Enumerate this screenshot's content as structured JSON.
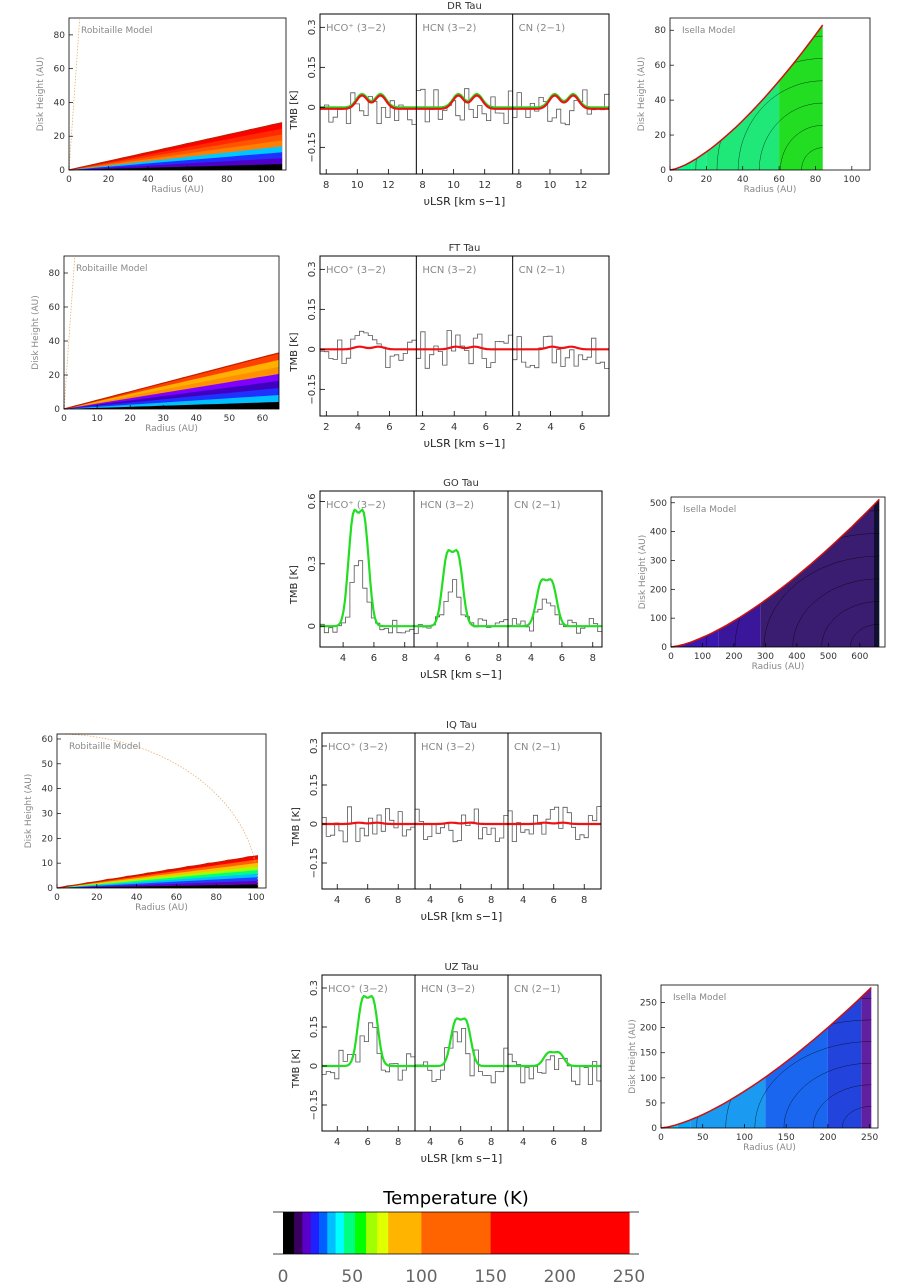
{
  "chart_data": {
    "type": "line",
    "colors": {
      "axis": "#000000",
      "label_text": "#888888",
      "spectrum": "#555555",
      "model_green": "#22dd22",
      "model_red": "#ee1111",
      "trace_orange": "#e8b070"
    },
    "spectra_common": {
      "xlabel": "υLSR [km s−1]",
      "ylabel": "TMB [K]"
    },
    "spectra_panels": [
      {
        "title": "DR Tau",
        "lines": [
          "HCO⁺ (3−2)",
          "HCN (3−2)",
          "CN (2−1)"
        ],
        "model": "red_and_green",
        "ylim": [
          -0.25,
          0.35
        ],
        "yticks": [
          -0.15,
          0,
          0.15,
          0.3
        ],
        "ytick_labels": [
          "−0.15",
          "0",
          "0.15",
          "0.3"
        ],
        "xlim": [
          7.6,
          13.8
        ],
        "xticks": [
          8,
          10,
          12
        ],
        "xtick_labels": [
          "8",
          "10",
          "12"
        ],
        "model_peak_k": 0.05,
        "model_center": 10.9
      },
      {
        "title": "FT Tau",
        "lines": [
          "HCO⁺ (3−2)",
          "HCN (3−2)",
          "CN (2−1)"
        ],
        "model": "red",
        "ylim": [
          -0.25,
          0.35
        ],
        "yticks": [
          -0.15,
          0,
          0.15,
          0.3
        ],
        "ytick_labels": [
          "−0.15",
          "0",
          "0.15",
          "0.3"
        ],
        "xlim": [
          1.6,
          7.7
        ],
        "xticks": [
          2,
          4,
          6
        ],
        "xtick_labels": [
          "2",
          "4",
          "6"
        ],
        "model_peak_k": 0.01,
        "model_center": 4.7
      },
      {
        "title": "GO Tau",
        "lines": [
          "HCO⁺ (3−2)",
          "HCN (3−2)",
          "CN (2−1)"
        ],
        "model": "green",
        "ylim": [
          -0.1,
          0.65
        ],
        "yticks": [
          0,
          0.3,
          0.6
        ],
        "ytick_labels": [
          "0",
          "0.3",
          "0.6"
        ],
        "xlim": [
          2.5,
          8.6
        ],
        "xticks": [
          4,
          6,
          8
        ],
        "xtick_labels": [
          "4",
          "6",
          "8"
        ],
        "model_peaks_k": [
          0.52,
          0.34,
          0.21
        ],
        "model_center": 5.0
      },
      {
        "title": "IQ Tau",
        "lines": [
          "HCO⁺ (3−2)",
          "HCN (3−2)",
          "CN (2−1)"
        ],
        "model": "red",
        "ylim": [
          -0.25,
          0.35
        ],
        "yticks": [
          -0.15,
          0,
          0.15,
          0.3
        ],
        "ytick_labels": [
          "−0.15",
          "0",
          "0.15",
          "0.3"
        ],
        "xlim": [
          3.0,
          9.1
        ],
        "xticks": [
          4,
          6,
          8
        ],
        "xtick_labels": [
          "4",
          "6",
          "8"
        ],
        "model_peak_k": 0.005,
        "model_center": 6.0
      },
      {
        "title": "UZ Tau",
        "lines": [
          "HCO⁺ (3−2)",
          "HCN (3−2)",
          "CN (2−1)"
        ],
        "model": "green",
        "ylim": [
          -0.25,
          0.35
        ],
        "yticks": [
          -0.15,
          0,
          0.15,
          0.3
        ],
        "ytick_labels": [
          "−0.15",
          "0",
          "0.15",
          "0.3"
        ],
        "xlim": [
          3.0,
          9.1
        ],
        "xticks": [
          4,
          6,
          8
        ],
        "xtick_labels": [
          "4",
          "6",
          "8"
        ],
        "model_peaks_k": [
          0.25,
          0.17,
          0.05
        ],
        "model_center": 6.0
      }
    ],
    "disk_panels": [
      {
        "name": "DR Tau Robitaille",
        "label": "Robitaille Model",
        "xlim": [
          0,
          110
        ],
        "ylim": [
          0,
          90
        ],
        "xticks": [
          0,
          20,
          40,
          60,
          80,
          100
        ],
        "yticks": [
          0,
          20,
          40,
          60,
          80
        ],
        "xlabel": "Radius (AU)",
        "ylabel": "Disk Height (AU)",
        "outer_radius": 108,
        "outer_height": 28,
        "stripe_colors": [
          "#ff0000",
          "#ff2a00",
          "#ff5500",
          "#ff8000",
          "#00c8ff",
          "#2030ff",
          "#5000c8",
          "#000000"
        ],
        "style": "robitaille"
      },
      {
        "name": "FT Tau Robitaille",
        "label": "Robitaille Model",
        "xlim": [
          0,
          65
        ],
        "ylim": [
          0,
          90
        ],
        "xticks": [
          0,
          10,
          20,
          30,
          40,
          50,
          60
        ],
        "yticks": [
          0,
          20,
          40,
          60,
          80
        ],
        "xlabel": "Radius (AU)",
        "ylabel": "Disk Height (AU)",
        "outer_radius": 65,
        "outer_height": 33,
        "stripe_colors": [
          "#ff4000",
          "#ffb000",
          "#ff9000",
          "#8000ff",
          "#4000c0",
          "#2030ff",
          "#00c0ff",
          "#000000"
        ],
        "style": "robitaille"
      },
      {
        "name": "IQ Tau Robitaille",
        "label": "Robitaille Model",
        "xlim": [
          0,
          105
        ],
        "ylim": [
          0,
          62
        ],
        "xticks": [
          0,
          20,
          40,
          60,
          80,
          100
        ],
        "yticks": [
          0,
          10,
          20,
          30,
          40,
          50,
          60
        ],
        "xlabel": "Radius (AU)",
        "ylabel": "Disk Height (AU)",
        "outer_radius": 101,
        "outer_height": 13,
        "stripe_colors": [
          "#ff0000",
          "#ff6000",
          "#ffc000",
          "#a0ff00",
          "#00ff80",
          "#00c0ff",
          "#2040ff",
          "#6000c0",
          "#000000"
        ],
        "style": "robitaille"
      },
      {
        "name": "DR Tau Isella",
        "label": "Isella Model",
        "xlim": [
          0,
          110
        ],
        "ylim": [
          0,
          87
        ],
        "xticks": [
          0,
          20,
          40,
          60,
          80,
          100
        ],
        "yticks": [
          0,
          20,
          40,
          60,
          80
        ],
        "xlabel": "Radius (AU)",
        "ylabel": "Disk Height (AU)",
        "outer_radius": 84,
        "outer_height": 83,
        "band_edges": [
          0,
          4,
          8,
          12,
          20,
          60,
          84
        ],
        "band_colors": [
          "#00ffcc",
          "#00ffa0",
          "#00ff80",
          "#22ee88",
          "#20e878",
          "#22dd22"
        ],
        "style": "isella"
      },
      {
        "name": "GO Tau Isella",
        "label": "Isella Model",
        "xlim": [
          0,
          680
        ],
        "ylim": [
          0,
          520
        ],
        "xticks": [
          0,
          100,
          200,
          300,
          400,
          500,
          600
        ],
        "yticks": [
          0,
          100,
          200,
          300,
          400,
          500
        ],
        "xlabel": "Radius (AU)",
        "ylabel": "Disk Height (AU)",
        "outer_radius": 662,
        "outer_height": 512,
        "band_edges": [
          0,
          40,
          150,
          285,
          645,
          662
        ],
        "band_colors": [
          "#3a10d0",
          "#3818b0",
          "#3a169a",
          "#3a1c70",
          "#101030"
        ],
        "style": "isella"
      },
      {
        "name": "UZ Tau Isella",
        "label": "Isella Model",
        "xlim": [
          0,
          260
        ],
        "ylim": [
          0,
          285
        ],
        "xticks": [
          0,
          50,
          100,
          150,
          200,
          250
        ],
        "yticks": [
          0,
          50,
          100,
          150,
          200,
          250
        ],
        "xlabel": "Radius (AU)",
        "ylabel": "Disk Height (AU)",
        "outer_radius": 252,
        "outer_height": 280,
        "band_edges": [
          0,
          20,
          35,
          125,
          200,
          240,
          252
        ],
        "band_colors": [
          "#00ccff",
          "#00aaff",
          "#1a9af0",
          "#1a66ee",
          "#2244dd",
          "#6020a0"
        ],
        "style": "isella"
      }
    ],
    "colorbar": {
      "title": "Temperature (K)",
      "range": [
        0,
        250
      ],
      "tick_labels": [
        "0",
        "50",
        "100",
        "150",
        "200",
        "250"
      ],
      "stops": [
        {
          "t": 0,
          "color": "#000000"
        },
        {
          "t": 8,
          "color": "#3a0060"
        },
        {
          "t": 14,
          "color": "#5a00c8"
        },
        {
          "t": 20,
          "color": "#2020ff"
        },
        {
          "t": 26,
          "color": "#0060ff"
        },
        {
          "t": 32,
          "color": "#00c0ff"
        },
        {
          "t": 38,
          "color": "#00ffff"
        },
        {
          "t": 44,
          "color": "#00ff80"
        },
        {
          "t": 52,
          "color": "#00ff00"
        },
        {
          "t": 60,
          "color": "#a0ff00"
        },
        {
          "t": 68,
          "color": "#e0ff00"
        },
        {
          "t": 76,
          "color": "#ffb400"
        },
        {
          "t": 100,
          "color": "#ff6400"
        },
        {
          "t": 150,
          "color": "#ff0000"
        },
        {
          "t": 250,
          "color": "#ff0000"
        }
      ]
    }
  }
}
